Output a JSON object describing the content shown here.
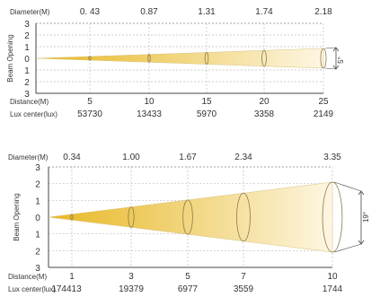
{
  "chart_data": [
    {
      "type": "beam-angle-diagram",
      "diameter_label": "Diameter(M)",
      "y_label": "Beam Opening",
      "distance_label": "Distance(M)",
      "lux_label": "Lux center(lux)",
      "y_ticks": [
        "3",
        "2",
        "1",
        "0",
        "1",
        "2",
        "3"
      ],
      "distance": [
        5,
        10,
        15,
        20,
        25
      ],
      "diameter": [
        "0. 43",
        "0.87",
        "1.31",
        "1.74",
        "2.18"
      ],
      "lux_center": [
        53730,
        13433,
        5970,
        3358,
        2149
      ],
      "beam_angle_label": "5°",
      "beam_angle_deg": 5
    },
    {
      "type": "beam-angle-diagram",
      "diameter_label": "Diameter(M)",
      "y_label": "Beam Opening",
      "distance_label": "Distance(M)",
      "lux_label": "Lux center(lux)",
      "y_ticks": [
        "3",
        "2",
        "1",
        "0",
        "1",
        "2",
        "3"
      ],
      "distance": [
        1,
        3,
        5,
        7,
        10
      ],
      "diameter": [
        "0.34",
        "1.00",
        "1.67",
        "2.34",
        "3.35"
      ],
      "lux_center": [
        174413,
        19379,
        6977,
        3559,
        1744
      ],
      "beam_angle_label": "19°",
      "beam_angle_deg": 19
    }
  ],
  "colors": {
    "beam_core": "#e8b824",
    "beam_fade": "#fdf6e3",
    "grid": "#bdbdbd",
    "axis": "#444444",
    "text": "#333333"
  }
}
